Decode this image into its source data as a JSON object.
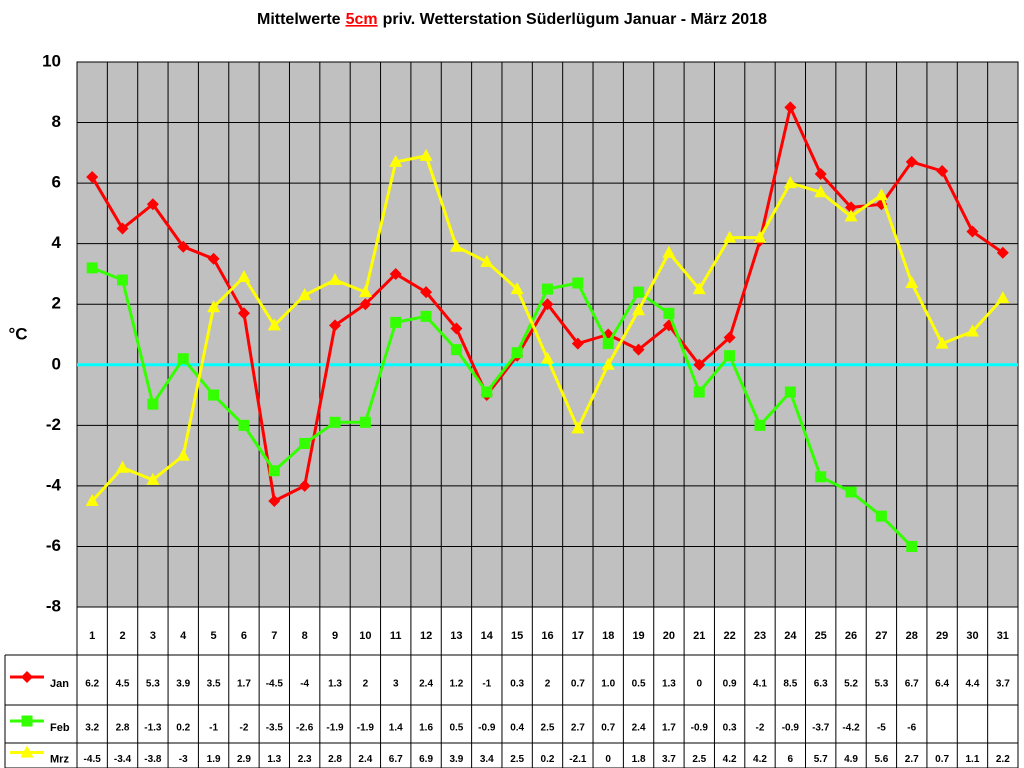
{
  "chart_data": {
    "type": "line",
    "title": [
      "Mittelwerte",
      "5cm",
      "priv. Wetterstation Süderlügum Januar - März 2018"
    ],
    "y_label": "°C",
    "categories": [
      "1",
      "2",
      "3",
      "4",
      "5",
      "6",
      "7",
      "8",
      "9",
      "10",
      "11",
      "12",
      "13",
      "14",
      "15",
      "16",
      "17",
      "18",
      "19",
      "20",
      "21",
      "22",
      "23",
      "24",
      "25",
      "26",
      "27",
      "28",
      "29",
      "30",
      "31"
    ],
    "ylim": [
      -8,
      10
    ],
    "yticks": [
      -8,
      -6,
      -4,
      -2,
      0,
      2,
      4,
      6,
      8,
      10
    ],
    "grid": true,
    "zero_line_color": "#00ffff",
    "series": [
      {
        "name": "Jan",
        "color": "#ff0000",
        "marker": "diamond",
        "values": [
          6.2,
          4.5,
          5.3,
          3.9,
          3.5,
          1.7,
          -4.5,
          -4,
          1.3,
          2,
          3,
          2.4,
          1.2,
          -1,
          0.3,
          2,
          0.7,
          1.0,
          0.5,
          1.3,
          0,
          0.9,
          4.1,
          8.5,
          6.3,
          5.2,
          5.3,
          6.7,
          6.4,
          4.4,
          3.7
        ],
        "value_labels": [
          "6.2",
          "4.5",
          "5.3",
          "3.9",
          "3.5",
          "1.7",
          "-4.5",
          "-4",
          "1.3",
          "2",
          "3",
          "2.4",
          "1.2",
          "-1",
          "0.3",
          "2",
          "0.7",
          "1.0",
          "0.5",
          "1.3",
          "0",
          "0.9",
          "4.1",
          "8.5",
          "6.3",
          "5.2",
          "5.3",
          "6.7",
          "6.4",
          "4.4",
          "3.7"
        ]
      },
      {
        "name": "Feb",
        "color": "#33ff00",
        "marker": "square",
        "values": [
          3.2,
          2.8,
          -1.3,
          0.2,
          -1,
          -2,
          -3.5,
          -2.6,
          -1.9,
          -1.9,
          1.4,
          1.6,
          0.5,
          -0.9,
          0.4,
          2.5,
          2.7,
          0.7,
          2.4,
          1.7,
          -0.9,
          0.3,
          -2,
          -0.9,
          -3.7,
          -4.2,
          -5,
          -6,
          null,
          null,
          null
        ]
      },
      {
        "name": "Mrz",
        "color": "#ffff00",
        "marker": "triangle",
        "values": [
          -4.5,
          -3.4,
          -3.8,
          -3,
          1.9,
          2.9,
          1.3,
          2.3,
          2.8,
          2.4,
          6.7,
          6.9,
          3.9,
          3.4,
          2.5,
          0.2,
          -2.1,
          0,
          1.8,
          3.7,
          2.5,
          4.2,
          4.2,
          6,
          5.7,
          4.9,
          5.6,
          2.7,
          0.7,
          1.1,
          2.2
        ]
      }
    ]
  }
}
